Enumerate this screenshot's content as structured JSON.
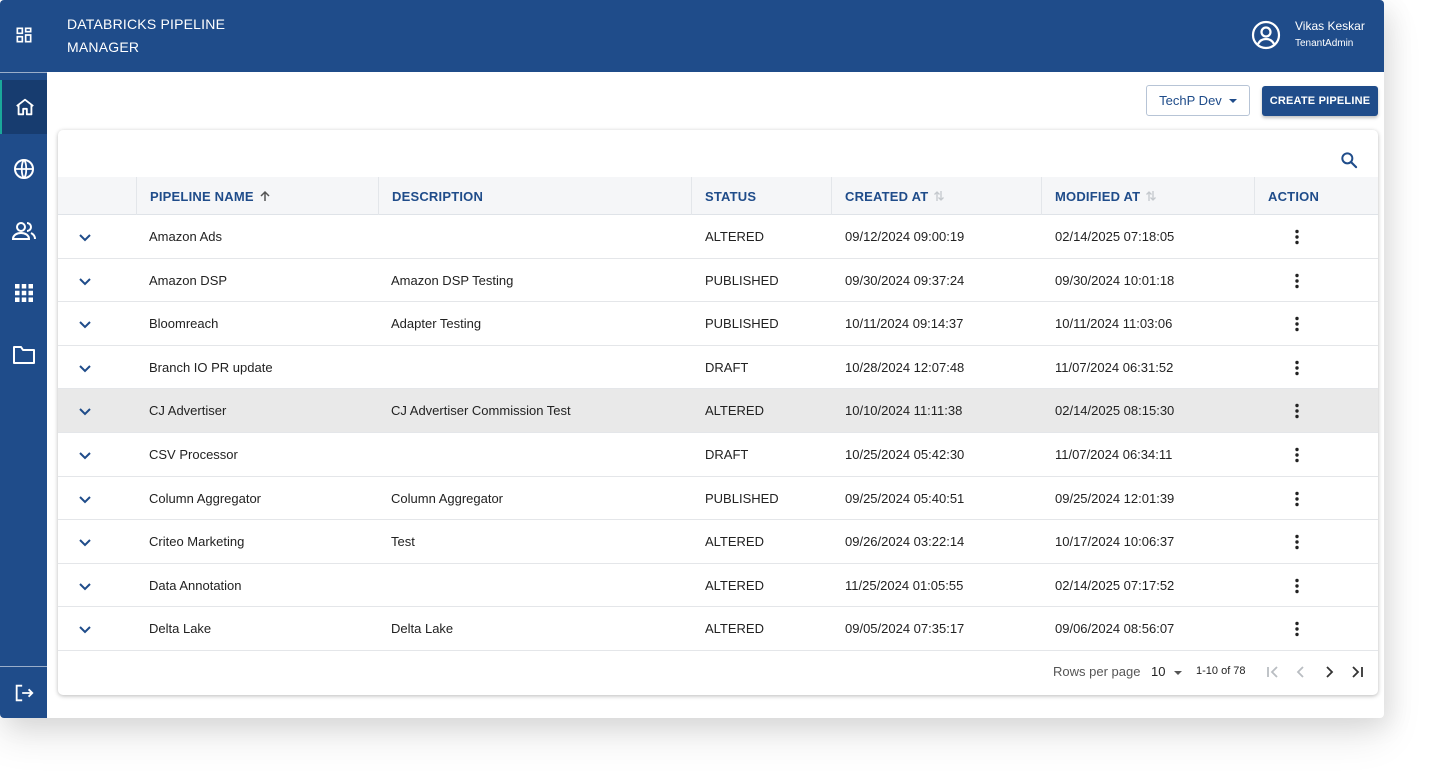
{
  "app": {
    "title_line1": "DATABRICKS PIPELINE",
    "title_line2": "MANAGER"
  },
  "user": {
    "name": "Vikas Keskar",
    "role": "TenantAdmin"
  },
  "sidebar": {
    "items": [
      {
        "icon": "dashboard-icon"
      },
      {
        "icon": "home-icon",
        "active": true
      },
      {
        "icon": "globe-icon"
      },
      {
        "icon": "users-icon"
      },
      {
        "icon": "apps-grid-icon"
      },
      {
        "icon": "folder-icon"
      },
      {
        "icon": "logout-icon"
      }
    ]
  },
  "toolbar": {
    "environment": "TechP Dev",
    "create_label": "CREATE PIPELINE"
  },
  "table": {
    "columns": [
      "PIPELINE NAME",
      "DESCRIPTION",
      "STATUS",
      "CREATED AT",
      "MODIFIED AT",
      "ACTION"
    ],
    "sort": {
      "column": "PIPELINE NAME",
      "direction": "asc"
    },
    "rows": [
      {
        "name": "Amazon Ads",
        "description": "",
        "status": "ALTERED",
        "created": "09/12/2024 09:00:19",
        "modified": "02/14/2025 07:18:05"
      },
      {
        "name": "Amazon DSP",
        "description": "Amazon DSP Testing",
        "status": "PUBLISHED",
        "created": "09/30/2024 09:37:24",
        "modified": "09/30/2024 10:01:18"
      },
      {
        "name": "Bloomreach",
        "description": "Adapter Testing",
        "status": "PUBLISHED",
        "created": "10/11/2024 09:14:37",
        "modified": "10/11/2024 11:03:06"
      },
      {
        "name": "Branch IO PR update",
        "description": "",
        "status": "DRAFT",
        "created": "10/28/2024 12:07:48",
        "modified": "11/07/2024 06:31:52"
      },
      {
        "name": "CJ Advertiser",
        "description": "CJ Advertiser Commission Test",
        "status": "ALTERED",
        "created": "10/10/2024 11:11:38",
        "modified": "02/14/2025 08:15:30",
        "highlighted": true
      },
      {
        "name": "CSV Processor",
        "description": "",
        "status": "DRAFT",
        "created": "10/25/2024 05:42:30",
        "modified": "11/07/2024 06:34:11"
      },
      {
        "name": "Column Aggregator",
        "description": "Column Aggregator",
        "status": "PUBLISHED",
        "created": "09/25/2024 05:40:51",
        "modified": "09/25/2024 12:01:39"
      },
      {
        "name": "Criteo Marketing",
        "description": "Test",
        "status": "ALTERED",
        "created": "09/26/2024 03:22:14",
        "modified": "10/17/2024 10:06:37"
      },
      {
        "name": "Data Annotation",
        "description": "",
        "status": "ALTERED",
        "created": "11/25/2024 01:05:55",
        "modified": "02/14/2025 07:17:52"
      },
      {
        "name": "Delta Lake",
        "description": "Delta Lake",
        "status": "ALTERED",
        "created": "09/05/2024 07:35:17",
        "modified": "09/06/2024 08:56:07"
      }
    ]
  },
  "pagination": {
    "rows_per_page_label": "Rows per page",
    "rows_per_page": "10",
    "range": "1-10 of 78"
  },
  "colors": {
    "brand": "#1f4c8a",
    "sidebar_active": "#173c6f",
    "active_accent": "#1aa89a",
    "header_bg": "#f5f6f8",
    "row_highlight": "#e9e9e9"
  }
}
